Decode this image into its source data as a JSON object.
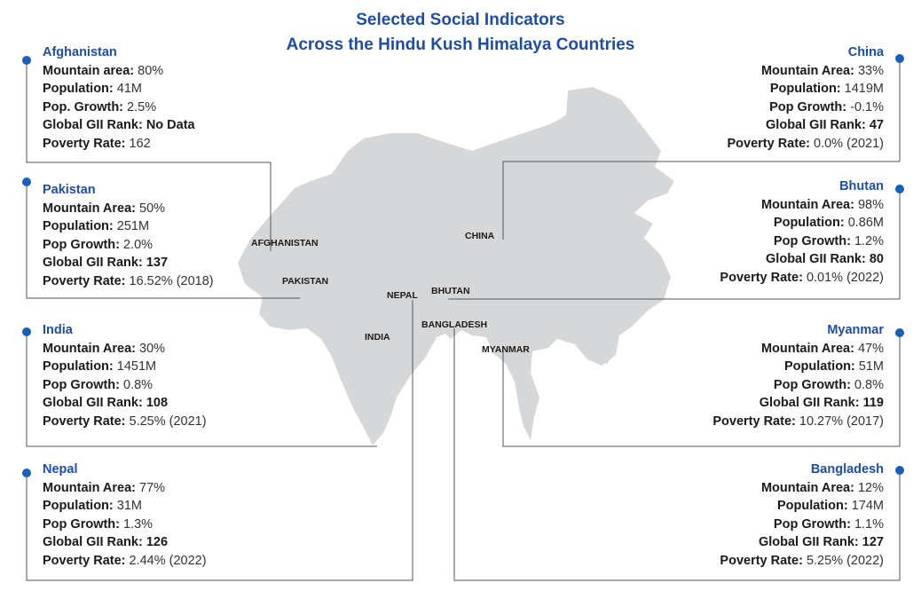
{
  "title": {
    "line1": "Selected Social Indicators",
    "line2": "Across the Hindu Kush Himalaya Countries"
  },
  "colors": {
    "accent": "#1f4e9c",
    "dot": "#1a5fb4",
    "land": "#d5d7d9",
    "line": "#555555"
  },
  "map_labels": {
    "afghanistan": "AFGHANISTAN",
    "china": "CHINA",
    "pakistan": "PAKISTAN",
    "nepal": "NEPAL",
    "bhutan": "BHUTAN",
    "bangladesh": "BANGLADESH",
    "india": "INDIA",
    "myanmar": "MYANMAR"
  },
  "countries": {
    "afghanistan": {
      "name": "Afghanistan",
      "rows": [
        {
          "label": "Mountain area: ",
          "value": "80%",
          "bold": false
        },
        {
          "label": "Population: ",
          "value": "41M",
          "bold": false
        },
        {
          "label": "Pop. Growth: ",
          "value": "2.5%",
          "bold": false
        },
        {
          "label": "Global GII Rank: ",
          "value": "No Data",
          "bold": true
        },
        {
          "label": "Poverty Rate: ",
          "value": "162",
          "bold": false
        }
      ]
    },
    "pakistan": {
      "name": "Pakistan",
      "rows": [
        {
          "label": "Mountain Area: ",
          "value": "50%",
          "bold": false
        },
        {
          "label": "Population: ",
          "value": "251M",
          "bold": false
        },
        {
          "label": "Pop Growth: ",
          "value": "2.0%",
          "bold": false
        },
        {
          "label": "Global GII Rank: ",
          "value": "137",
          "bold": true
        },
        {
          "label": "Poverty Rate: ",
          "value": "16.52% (2018)",
          "bold": false
        }
      ]
    },
    "india": {
      "name": "India",
      "rows": [
        {
          "label": "Mountain Area: ",
          "value": "30%",
          "bold": false
        },
        {
          "label": "Population: ",
          "value": "1451M",
          "bold": false
        },
        {
          "label": "Pop Growth: ",
          "value": "0.8%",
          "bold": false
        },
        {
          "label": "Global GII Rank: ",
          "value": "108",
          "bold": true
        },
        {
          "label": "Poverty Rate: ",
          "value": "5.25% (2021)",
          "bold": false
        }
      ]
    },
    "nepal": {
      "name": "Nepal",
      "rows": [
        {
          "label": "Mountain Area: ",
          "value": "77%",
          "bold": false
        },
        {
          "label": "Population: ",
          "value": "31M",
          "bold": false
        },
        {
          "label": "Pop Growth: ",
          "value": "1.3%",
          "bold": false
        },
        {
          "label": "Global GII Rank: ",
          "value": "126",
          "bold": true
        },
        {
          "label": "Poverty Rate: ",
          "value": "2.44% (2022)",
          "bold": false
        }
      ]
    },
    "china": {
      "name": "China",
      "rows": [
        {
          "label": "Mountain Area: ",
          "value": "33%",
          "bold": false
        },
        {
          "label": "Population: ",
          "value": "1419M",
          "bold": false
        },
        {
          "label": "Pop Growth: ",
          "value": "-0.1%",
          "bold": false
        },
        {
          "label": "Global GII Rank: ",
          "value": "47",
          "bold": true
        },
        {
          "label": "Poverty Rate: ",
          "value": "0.0% (2021)",
          "bold": false
        }
      ]
    },
    "bhutan": {
      "name": "Bhutan",
      "rows": [
        {
          "label": "Mountain Area: ",
          "value": "98%",
          "bold": false
        },
        {
          "label": "Population: ",
          "value": "0.86M",
          "bold": false
        },
        {
          "label": "Pop Growth: ",
          "value": "1.2%",
          "bold": false
        },
        {
          "label": "Global GII Rank: ",
          "value": "80",
          "bold": true
        },
        {
          "label": "Poverty Rate: ",
          "value": "0.01% (2022)",
          "bold": false
        }
      ]
    },
    "myanmar": {
      "name": "Myanmar",
      "rows": [
        {
          "label": "Mountain Area: ",
          "value": "47%",
          "bold": false
        },
        {
          "label": "Population: ",
          "value": "51M",
          "bold": false
        },
        {
          "label": "Pop Growth: ",
          "value": "0.8%",
          "bold": false
        },
        {
          "label": "Global GII Rank: ",
          "value": "119",
          "bold": true
        },
        {
          "label": "Poverty Rate: ",
          "value": "10.27% (2017)",
          "bold": false
        }
      ]
    },
    "bangladesh": {
      "name": "Bangladesh",
      "rows": [
        {
          "label": "Mountain Area: ",
          "value": "12%",
          "bold": false
        },
        {
          "label": "Population: ",
          "value": "174M",
          "bold": false
        },
        {
          "label": "Pop Growth: ",
          "value": "1.1%",
          "bold": false
        },
        {
          "label": "Global GII Rank: ",
          "value": "127",
          "bold": true
        },
        {
          "label": "Poverty Rate: ",
          "value": "5.25% (2022)",
          "bold": false
        }
      ]
    }
  }
}
